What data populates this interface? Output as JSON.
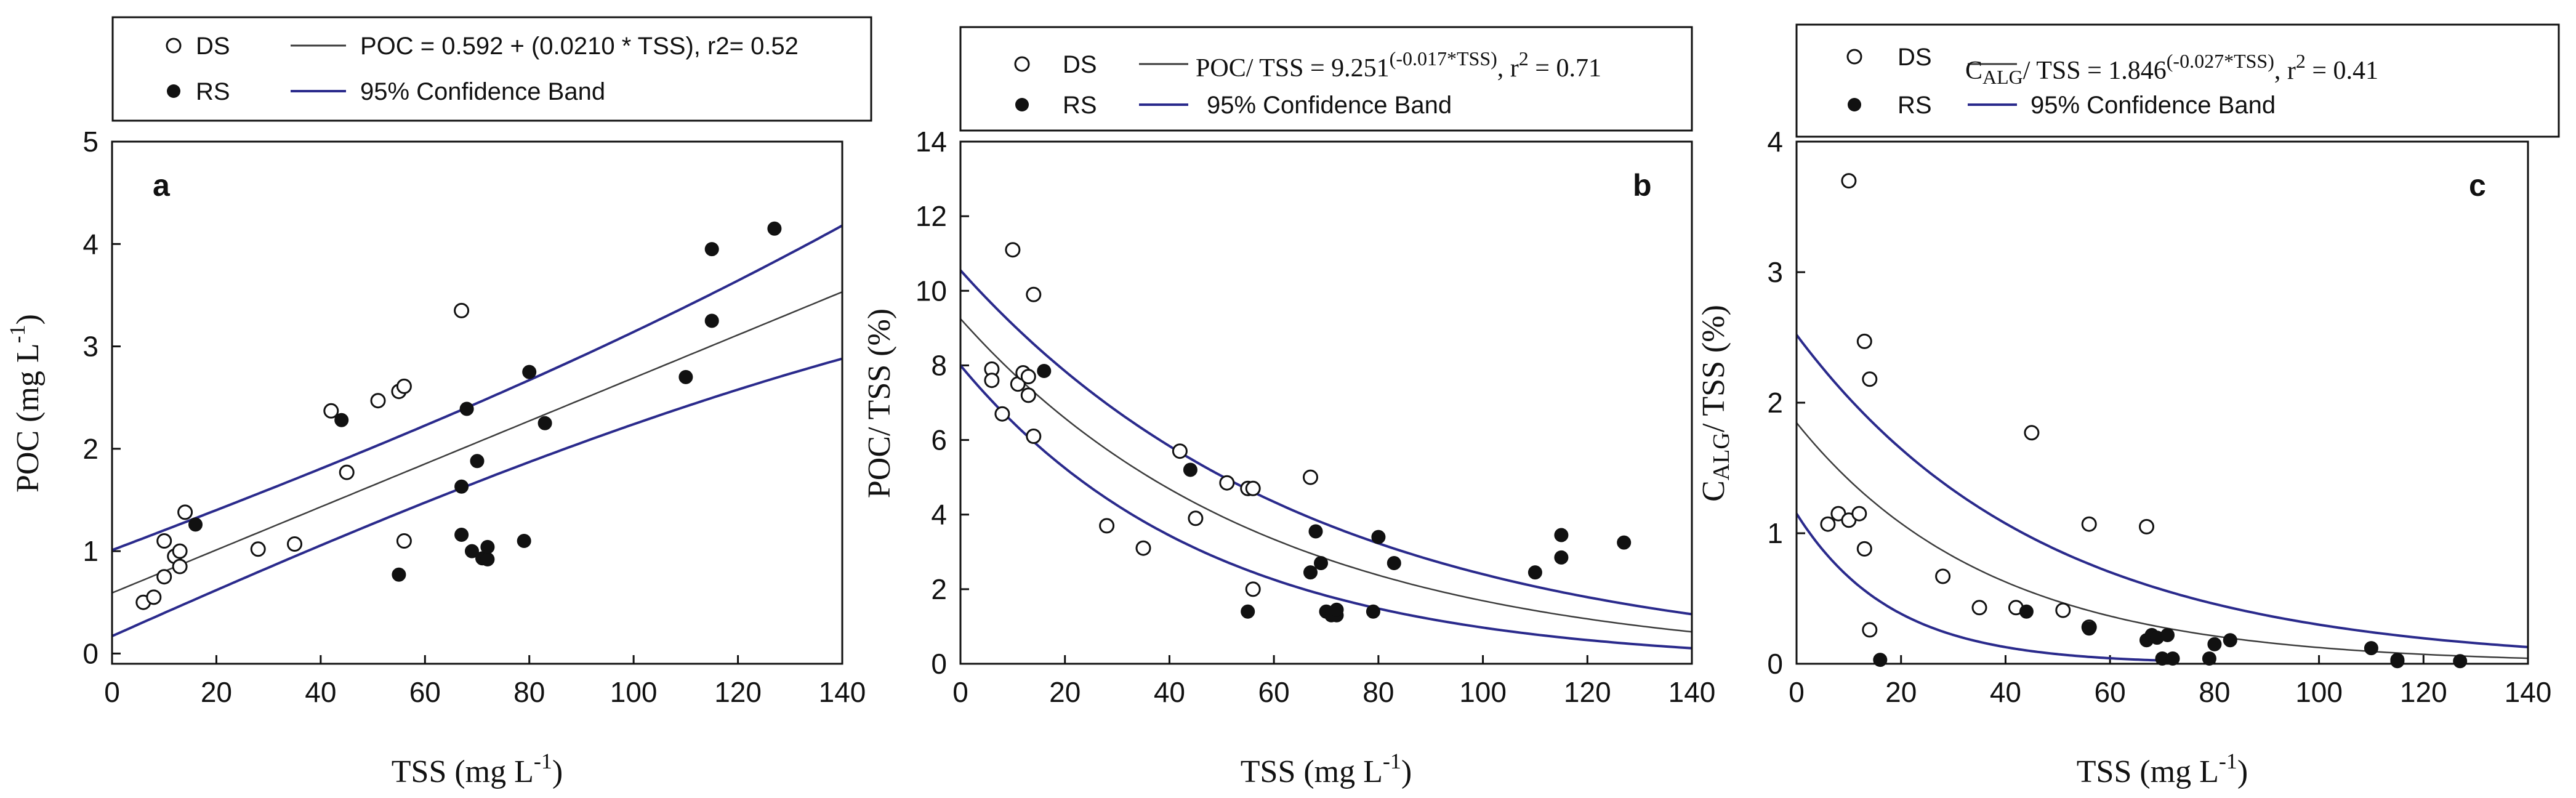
{
  "colors": {
    "fit": "#3c3c3c",
    "band": "#2a2a8c",
    "ink": "#111111"
  },
  "chart_data": [
    {
      "type": "scatter",
      "panel_label": "a",
      "legend": {
        "ds_label": "DS",
        "rs_label": "RS",
        "fit_label": "POC = 0.592 + (0.0210 * TSS), r2= 0.52",
        "band_label": "95% Confidence Band"
      },
      "xlabel_main": "TSS (mg L",
      "xlabel_sup": "-1",
      "xlabel_end": ")",
      "ylabel_main": "POC (mg L",
      "ylabel_sup": "-1",
      "ylabel_end": ")",
      "xlim": [
        0,
        140
      ],
      "ylim": [
        -0.1,
        5
      ],
      "xticks": [
        "0",
        "20",
        "40",
        "60",
        "80",
        "100",
        "120",
        "140"
      ],
      "xtick_values": [
        0,
        20,
        40,
        60,
        80,
        100,
        120,
        140
      ],
      "yticks": [
        "0",
        "1",
        "2",
        "3",
        "4",
        "5"
      ],
      "ytick_values": [
        0,
        1,
        2,
        3,
        4,
        5
      ],
      "series": [
        {
          "name": "DS",
          "style": "open",
          "x": [
            6,
            8,
            10,
            10,
            12,
            13,
            13,
            14,
            28,
            35,
            42,
            45,
            51,
            55,
            56,
            56,
            67
          ],
          "y": [
            0.5,
            0.55,
            0.75,
            1.1,
            0.95,
            1.0,
            0.85,
            1.38,
            1.02,
            1.07,
            2.37,
            1.77,
            2.47,
            2.56,
            2.61,
            1.1,
            3.35
          ]
        },
        {
          "name": "RS",
          "style": "filled",
          "x": [
            16,
            44,
            55,
            67,
            67,
            68,
            69,
            70,
            71,
            72,
            72,
            79,
            80,
            83,
            110,
            115,
            115,
            127
          ],
          "y": [
            1.26,
            2.28,
            0.77,
            1.63,
            1.16,
            2.39,
            1.0,
            1.88,
            0.93,
            0.92,
            1.04,
            1.1,
            2.75,
            2.25,
            2.7,
            3.95,
            3.25,
            4.15
          ]
        }
      ],
      "fit": {
        "model": "linear",
        "a": 0.592,
        "b": 0.021,
        "x_range": [
          0,
          140
        ],
        "lower_ends": [
          0.17,
          2.88
        ],
        "upper_ends": [
          1.01,
          4.18
        ]
      }
    },
    {
      "type": "scatter",
      "panel_label": "b",
      "legend": {
        "ds_label": "DS",
        "rs_label": "RS",
        "fit_main": "POC/ TSS = 9.251",
        "fit_exp": "(-0.017*TSS)",
        "fit_r": ", r",
        "fit_r_exp": "2",
        "fit_r_val": " = 0.71",
        "band_label": "95% Confidence Band"
      },
      "xlabel_main": "TSS (mg L",
      "xlabel_sup": "-1",
      "xlabel_end": ")",
      "ylabel_main": "POC/ TSS (%)",
      "xlim": [
        0,
        140
      ],
      "ylim": [
        0,
        14
      ],
      "xticks": [
        "0",
        "20",
        "40",
        "60",
        "80",
        "100",
        "120",
        "140"
      ],
      "xtick_values": [
        0,
        20,
        40,
        60,
        80,
        100,
        120,
        140
      ],
      "yticks": [
        "0",
        "2",
        "4",
        "6",
        "8",
        "10",
        "12",
        "14"
      ],
      "ytick_values": [
        0,
        2,
        4,
        6,
        8,
        10,
        12,
        14
      ],
      "series": [
        {
          "name": "DS",
          "style": "open",
          "x": [
            6,
            6,
            8,
            10,
            11,
            12,
            13,
            13,
            14,
            14,
            28,
            35,
            42,
            45,
            51,
            55,
            56,
            56,
            67
          ],
          "y": [
            7.9,
            7.6,
            6.7,
            11.1,
            7.5,
            7.8,
            7.7,
            7.2,
            6.1,
            9.9,
            3.7,
            3.1,
            5.7,
            3.9,
            4.85,
            4.7,
            4.7,
            2.0,
            5.0
          ]
        },
        {
          "name": "RS",
          "style": "filled",
          "x": [
            16,
            44,
            55,
            67,
            68,
            69,
            70,
            71,
            72,
            72,
            79,
            80,
            83,
            110,
            115,
            115,
            127
          ],
          "y": [
            7.85,
            5.2,
            1.4,
            2.45,
            3.55,
            2.7,
            1.4,
            1.3,
            1.3,
            1.45,
            1.4,
            3.4,
            2.7,
            2.45,
            3.45,
            2.85,
            3.25
          ]
        }
      ],
      "fit": {
        "model": "exp",
        "a": 9.251,
        "b": -0.017,
        "x_range": [
          0,
          140
        ],
        "lower_a": 8.0,
        "lower_b": -0.0211,
        "upper_a": 10.55,
        "upper_b": -0.0148
      }
    },
    {
      "type": "scatter",
      "panel_label": "c",
      "legend": {
        "ds_label": "DS",
        "rs_label": "RS",
        "fit_main": "C",
        "fit_sub": "ALG",
        "fit_rest": "/ TSS = 1.846",
        "fit_exp": "(-0.027*TSS)",
        "fit_r": ", r",
        "fit_r_exp": "2",
        "fit_r_val": " = 0.41",
        "band_label": "95% Confidence Band"
      },
      "xlabel_main": "TSS (mg L",
      "xlabel_sup": "-1",
      "xlabel_end": ")",
      "ylabel_main": "C",
      "ylabel_sub": "ALG",
      "ylabel_end": "/ TSS (%)",
      "xlim": [
        0,
        140
      ],
      "ylim": [
        0,
        4
      ],
      "xticks": [
        "0",
        "20",
        "40",
        "60",
        "80",
        "100",
        "120",
        "140"
      ],
      "xtick_values": [
        0,
        20,
        40,
        60,
        80,
        100,
        120,
        140
      ],
      "yticks": [
        "0",
        "1",
        "2",
        "3",
        "4"
      ],
      "ytick_values": [
        0,
        1,
        2,
        3,
        4
      ],
      "series": [
        {
          "name": "DS",
          "style": "open",
          "x": [
            6,
            8,
            10,
            10,
            12,
            13,
            13,
            14,
            14,
            28,
            35,
            42,
            45,
            51,
            56,
            56,
            67
          ],
          "y": [
            1.07,
            1.15,
            3.7,
            1.1,
            1.15,
            2.47,
            0.88,
            2.18,
            0.26,
            0.67,
            0.43,
            0.43,
            1.77,
            0.41,
            1.07,
            0.28,
            1.05
          ]
        },
        {
          "name": "RS",
          "style": "filled",
          "x": [
            16,
            44,
            56,
            67,
            68,
            69,
            70,
            71,
            72,
            79,
            80,
            83,
            110,
            115,
            115,
            127
          ],
          "y": [
            0.03,
            0.4,
            0.27,
            0.18,
            0.22,
            0.2,
            0.04,
            0.22,
            0.04,
            0.04,
            0.15,
            0.18,
            0.12,
            0.03,
            0.02,
            0.02
          ]
        }
      ],
      "fit": {
        "model": "exp",
        "a": 1.846,
        "b": -0.027,
        "x_range": [
          0,
          140
        ],
        "lower_a": 1.15,
        "lower_b": -0.055,
        "lower_xmax": 72,
        "upper_a": 2.52,
        "upper_b": -0.0213
      }
    }
  ]
}
